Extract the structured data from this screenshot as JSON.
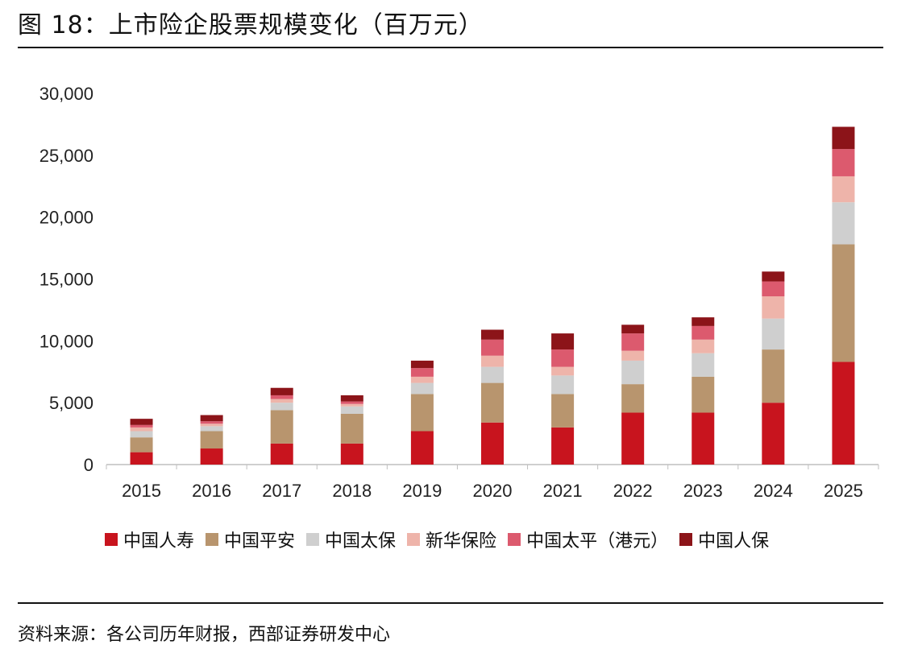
{
  "figure": {
    "title": "图 18：上市险企股票规模变化（百万元）",
    "source": "资料来源：各公司历年财报，西部证券研发中心"
  },
  "chart_data": {
    "type": "bar",
    "stacked": true,
    "categories": [
      "2015",
      "2016",
      "2017",
      "2018",
      "2019",
      "2020",
      "2021",
      "2022",
      "2023",
      "2024",
      "2025"
    ],
    "y_ticks": [
      "0",
      "5,000",
      "10,000",
      "15,000",
      "20,000",
      "25,000",
      "30,000"
    ],
    "ylim": [
      0,
      30000
    ],
    "grid": false,
    "legend_position": "bottom",
    "series": [
      {
        "name": "中国人寿",
        "color": "#C8141E",
        "values": [
          1000,
          1300,
          1700,
          1700,
          2700,
          3400,
          3000,
          4200,
          4200,
          5000,
          8300
        ]
      },
      {
        "name": "中国平安",
        "color": "#B8956E",
        "values": [
          1200,
          1400,
          2700,
          2400,
          3000,
          3200,
          2700,
          2300,
          2900,
          4300,
          9500
        ]
      },
      {
        "name": "中国太保",
        "color": "#CFCFCF",
        "values": [
          500,
          400,
          600,
          600,
          900,
          1300,
          1500,
          1900,
          1900,
          2500,
          3400
        ]
      },
      {
        "name": "新华保险",
        "color": "#EEB4AA",
        "values": [
          300,
          200,
          300,
          200,
          500,
          900,
          700,
          800,
          1100,
          1800,
          2100
        ]
      },
      {
        "name": "中国太平（港元）",
        "color": "#DC5A6E",
        "values": [
          200,
          200,
          300,
          200,
          700,
          1300,
          1400,
          1400,
          1100,
          1200,
          2200
        ]
      },
      {
        "name": "中国人保",
        "color": "#8C1419",
        "values": [
          500,
          500,
          600,
          500,
          600,
          800,
          1300,
          700,
          700,
          800,
          1800
        ]
      }
    ]
  }
}
